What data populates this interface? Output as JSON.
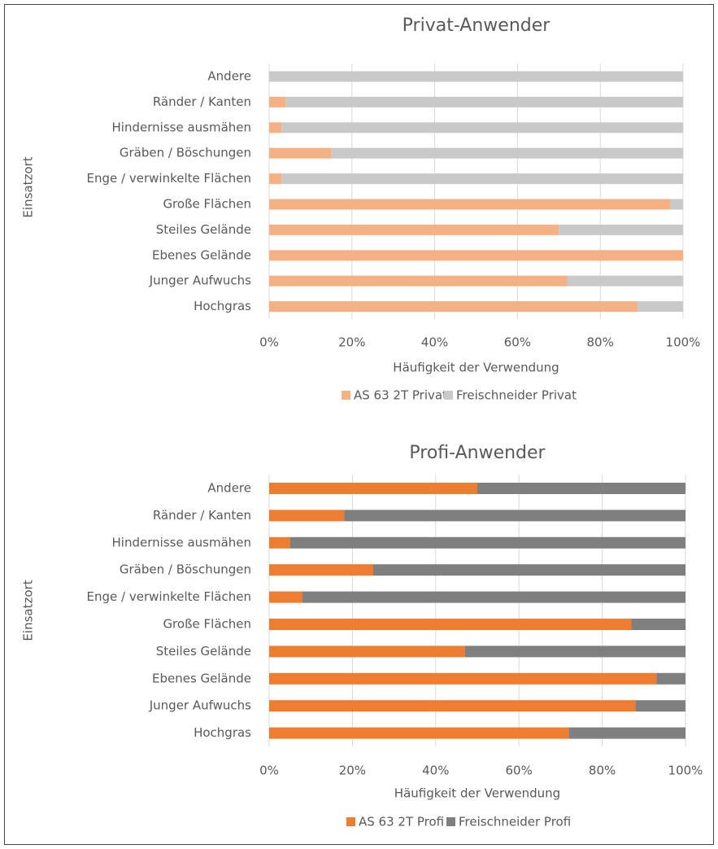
{
  "chart_data": [
    {
      "type": "bar",
      "title": "Privat-Anwender",
      "xlabel": "Häufigkeit der Verwendung",
      "ylabel": "Einsatzort",
      "categories": [
        "Andere",
        "Ränder / Kanten",
        "Hindernisse ausmähen",
        "Gräben / Böschungen",
        "Enge / verwinkelte Flächen",
        "Große Flächen",
        "Steiles Gelände",
        "Ebenes Gelände",
        "Junger Aufwuchs",
        "Hochgras"
      ],
      "series": [
        {
          "name": "AS 63 2T Privat",
          "color": "#f4b183",
          "values": [
            0,
            4,
            3,
            15,
            3,
            97,
            70,
            100,
            72,
            89
          ]
        },
        {
          "name": "Freischneider Privat",
          "color": "#c9c9c9",
          "values": [
            100,
            96,
            97,
            85,
            97,
            3,
            30,
            0,
            28,
            11
          ]
        }
      ],
      "xlim": [
        0,
        100
      ],
      "xticks": [
        {
          "value": 0,
          "label": "0%"
        },
        {
          "value": 20,
          "label": "20%"
        },
        {
          "value": 40,
          "label": "40%"
        },
        {
          "value": 60,
          "label": "60%"
        },
        {
          "value": 80,
          "label": "80%"
        },
        {
          "value": 100,
          "label": "100%"
        }
      ],
      "grid": true,
      "stacked": true,
      "legend": "bottom"
    },
    {
      "type": "bar",
      "title": "Profi-Anwender",
      "xlabel": "Häufigkeit der Verwendung",
      "ylabel": "Einsatzort",
      "categories": [
        "Andere",
        "Ränder / Kanten",
        "Hindernisse ausmähen",
        "Gräben / Böschungen",
        "Enge / verwinkelte Flächen",
        "Große Flächen",
        "Steiles Gelände",
        "Ebenes Gelände",
        "Junger Aufwuchs",
        "Hochgras"
      ],
      "series": [
        {
          "name": "AS 63 2T Profi",
          "color": "#ed7d31",
          "values": [
            50,
            18,
            5,
            25,
            8,
            87,
            47,
            93,
            88,
            72
          ]
        },
        {
          "name": "Freischneider Profi",
          "color": "#7f7f7f",
          "values": [
            50,
            82,
            95,
            75,
            92,
            13,
            53,
            7,
            12,
            28
          ]
        }
      ],
      "xlim": [
        0,
        100
      ],
      "xticks": [
        {
          "value": 0,
          "label": "0%"
        },
        {
          "value": 20,
          "label": "20%"
        },
        {
          "value": 40,
          "label": "40%"
        },
        {
          "value": 60,
          "label": "60%"
        },
        {
          "value": 80,
          "label": "80%"
        },
        {
          "value": 100,
          "label": "100%"
        }
      ],
      "grid": true,
      "stacked": true,
      "legend": "bottom"
    }
  ]
}
